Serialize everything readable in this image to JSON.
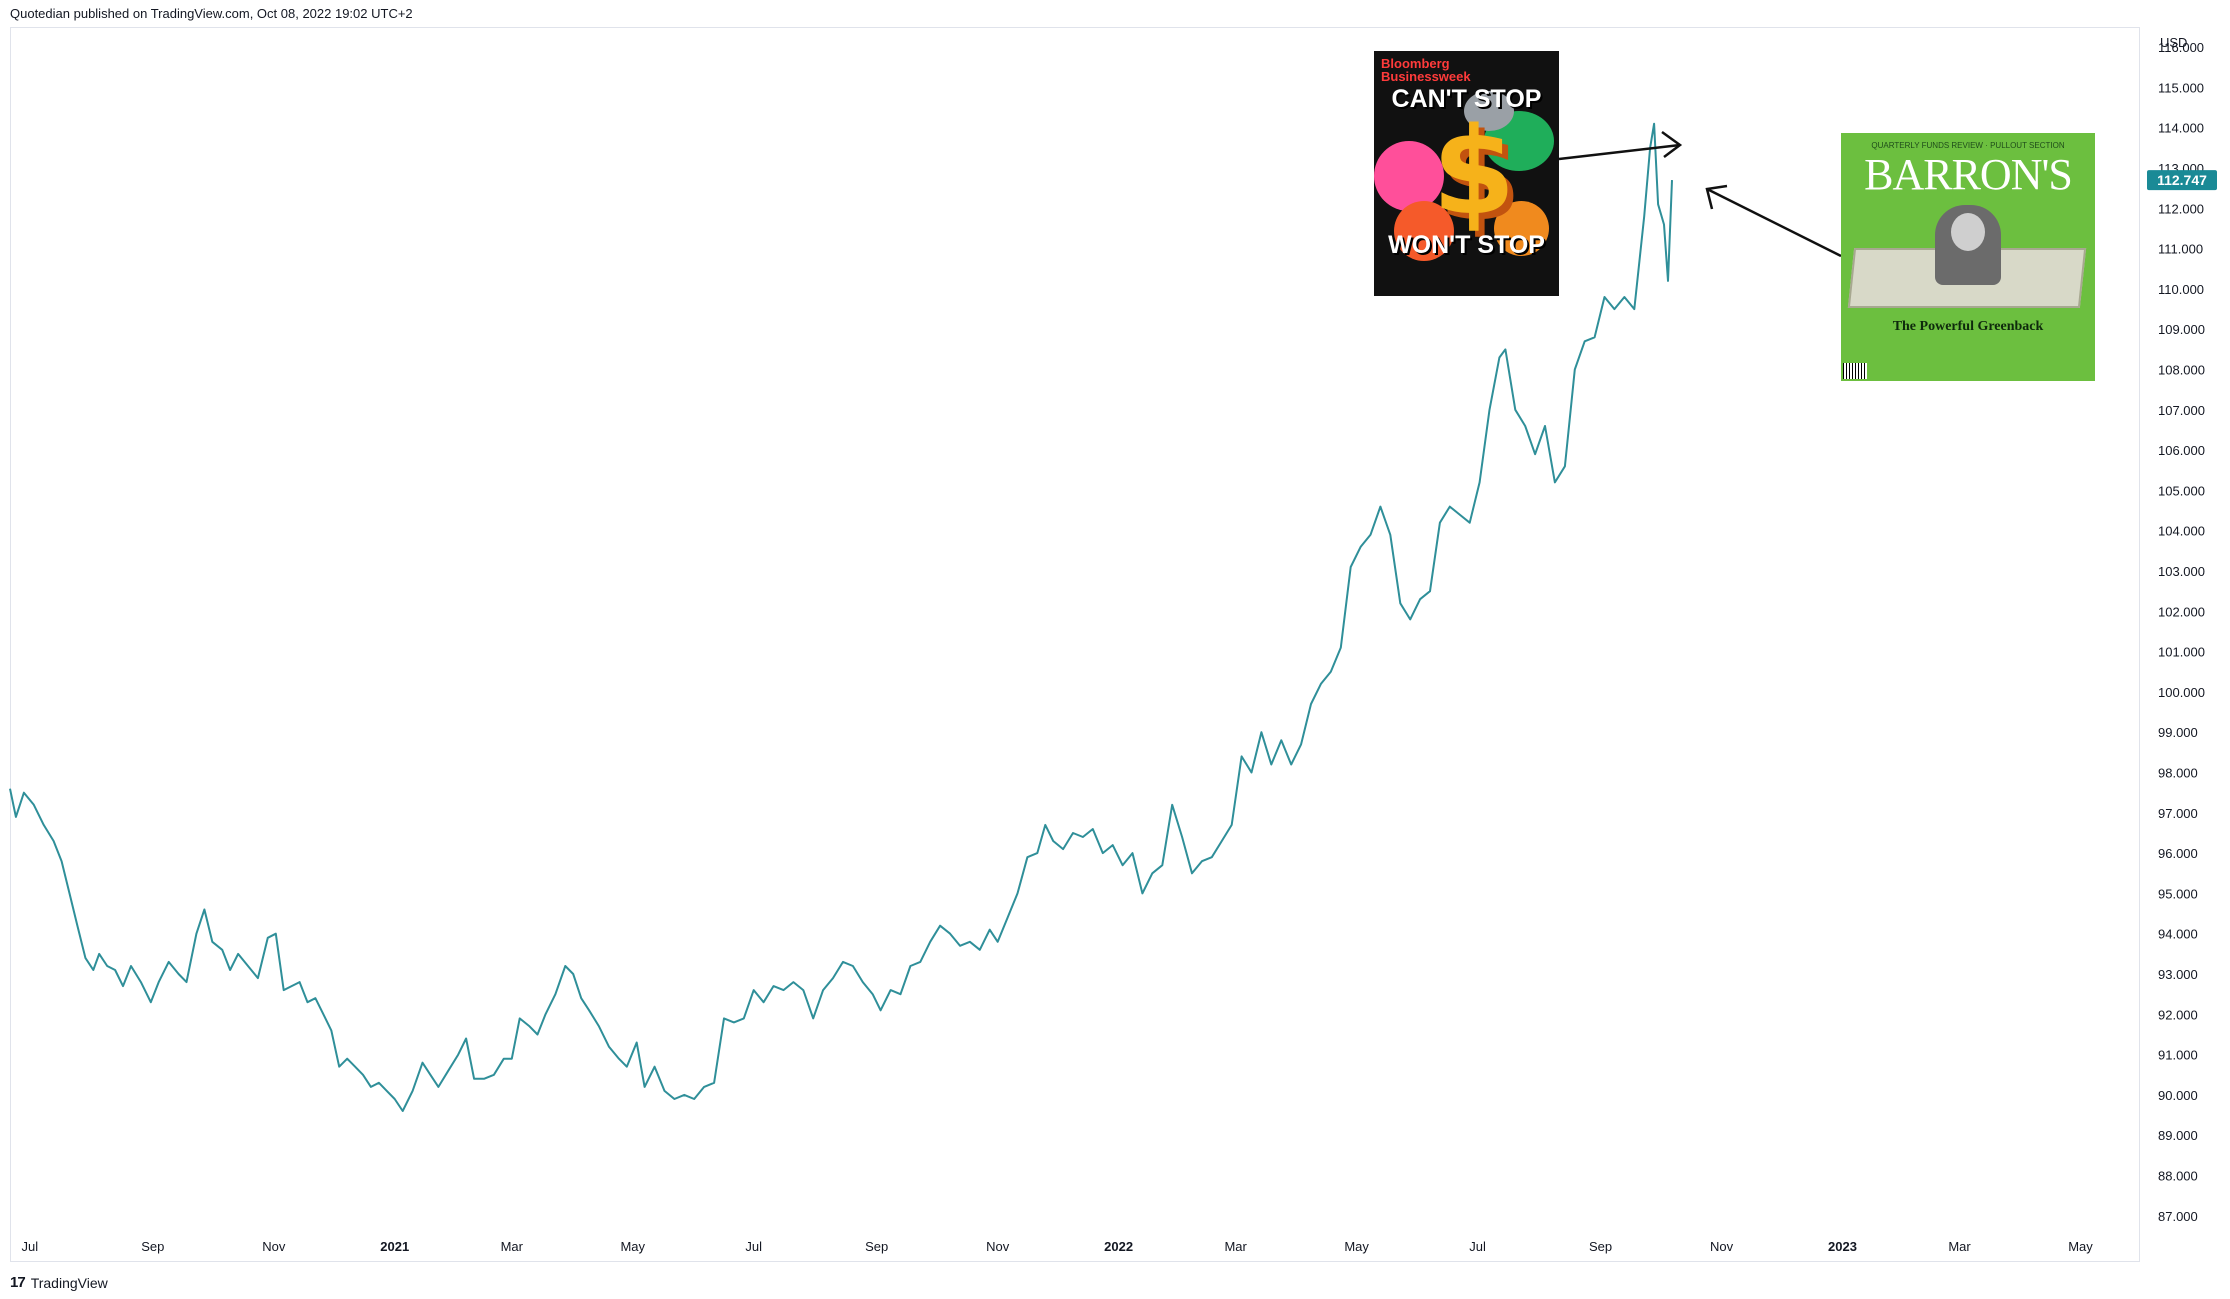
{
  "header": {
    "published": "Quotedian published on TradingView.com, Oct 08, 2022 19:02 UTC+2"
  },
  "footer": {
    "logo_mark": "17",
    "brand": "TradingView"
  },
  "colors": {
    "line": "#2f8f99",
    "last_price_bg": "#1a8a96",
    "axis_text": "#131722",
    "frame": "#e0e3eb"
  },
  "annotations": {
    "bloomberg": {
      "brand": "Bloomberg Businessweek",
      "headline_top": "CAN'T STOP",
      "headline_bottom": "WON'T STOP",
      "dollar": "$"
    },
    "barrons": {
      "kicker": "QUARTERLY FUNDS REVIEW · PULLOUT SECTION",
      "masthead": "BARRON'S",
      "title": "The Powerful Greenback"
    }
  },
  "chart_data": {
    "type": "line",
    "y_unit": "USD",
    "last_price": "112.747",
    "ylim": [
      86.4,
      116.5
    ],
    "y_ticks": [
      87,
      88,
      89,
      90,
      91,
      92,
      93,
      94,
      95,
      96,
      97,
      98,
      99,
      100,
      101,
      102,
      103,
      104,
      105,
      106,
      107,
      108,
      109,
      110,
      111,
      112,
      113,
      114,
      115,
      116
    ],
    "y_tick_labels": [
      "87.000",
      "88.000",
      "89.000",
      "90.000",
      "91.000",
      "92.000",
      "93.000",
      "94.000",
      "95.000",
      "96.000",
      "97.000",
      "98.000",
      "99.000",
      "100.000",
      "101.000",
      "102.000",
      "103.000",
      "104.000",
      "105.000",
      "106.000",
      "107.000",
      "108.000",
      "109.000",
      "110.000",
      "111.000",
      "112.000",
      "113.000",
      "114.000",
      "115.000",
      "116.000"
    ],
    "x_ticks": [
      {
        "date": "2020-07-01",
        "label": "Jul",
        "bold": false
      },
      {
        "date": "2020-09-01",
        "label": "Sep",
        "bold": false
      },
      {
        "date": "2020-11-01",
        "label": "Nov",
        "bold": false
      },
      {
        "date": "2021-01-01",
        "label": "2021",
        "bold": true
      },
      {
        "date": "2021-03-01",
        "label": "Mar",
        "bold": false
      },
      {
        "date": "2021-05-01",
        "label": "May",
        "bold": false
      },
      {
        "date": "2021-07-01",
        "label": "Jul",
        "bold": false
      },
      {
        "date": "2021-09-01",
        "label": "Sep",
        "bold": false
      },
      {
        "date": "2021-11-01",
        "label": "Nov",
        "bold": false
      },
      {
        "date": "2022-01-01",
        "label": "2022",
        "bold": true
      },
      {
        "date": "2022-03-01",
        "label": "Mar",
        "bold": false
      },
      {
        "date": "2022-05-01",
        "label": "May",
        "bold": false
      },
      {
        "date": "2022-07-01",
        "label": "Jul",
        "bold": false
      },
      {
        "date": "2022-09-01",
        "label": "Sep",
        "bold": false
      },
      {
        "date": "2022-11-01",
        "label": "Nov",
        "bold": false
      },
      {
        "date": "2023-01-01",
        "label": "2023",
        "bold": true
      },
      {
        "date": "2023-03-01",
        "label": "Mar",
        "bold": false
      },
      {
        "date": "2023-05-01",
        "label": "May",
        "bold": false
      }
    ],
    "xlim": [
      "2020-06-21",
      "2023-05-31"
    ],
    "series": [
      {
        "points": [
          [
            "2020-06-21",
            97.6
          ],
          [
            "2020-06-24",
            96.9
          ],
          [
            "2020-06-28",
            97.5
          ],
          [
            "2020-07-03",
            97.2
          ],
          [
            "2020-07-08",
            96.7
          ],
          [
            "2020-07-13",
            96.3
          ],
          [
            "2020-07-17",
            95.8
          ],
          [
            "2020-07-21",
            95.0
          ],
          [
            "2020-07-25",
            94.2
          ],
          [
            "2020-07-29",
            93.4
          ],
          [
            "2020-08-02",
            93.1
          ],
          [
            "2020-08-05",
            93.5
          ],
          [
            "2020-08-09",
            93.2
          ],
          [
            "2020-08-13",
            93.1
          ],
          [
            "2020-08-17",
            92.7
          ],
          [
            "2020-08-21",
            93.2
          ],
          [
            "2020-08-26",
            92.8
          ],
          [
            "2020-08-31",
            92.3
          ],
          [
            "2020-09-04",
            92.8
          ],
          [
            "2020-09-09",
            93.3
          ],
          [
            "2020-09-14",
            93.0
          ],
          [
            "2020-09-18",
            92.8
          ],
          [
            "2020-09-23",
            94.0
          ],
          [
            "2020-09-27",
            94.6
          ],
          [
            "2020-10-01",
            93.8
          ],
          [
            "2020-10-06",
            93.6
          ],
          [
            "2020-10-10",
            93.1
          ],
          [
            "2020-10-14",
            93.5
          ],
          [
            "2020-10-19",
            93.2
          ],
          [
            "2020-10-24",
            92.9
          ],
          [
            "2020-10-29",
            93.9
          ],
          [
            "2020-11-02",
            94.0
          ],
          [
            "2020-11-06",
            92.6
          ],
          [
            "2020-11-10",
            92.7
          ],
          [
            "2020-11-14",
            92.8
          ],
          [
            "2020-11-18",
            92.3
          ],
          [
            "2020-11-22",
            92.4
          ],
          [
            "2020-11-26",
            92.0
          ],
          [
            "2020-11-30",
            91.6
          ],
          [
            "2020-12-04",
            90.7
          ],
          [
            "2020-12-08",
            90.9
          ],
          [
            "2020-12-12",
            90.7
          ],
          [
            "2020-12-16",
            90.5
          ],
          [
            "2020-12-20",
            90.2
          ],
          [
            "2020-12-24",
            90.3
          ],
          [
            "2020-12-28",
            90.1
          ],
          [
            "2021-01-01",
            89.9
          ],
          [
            "2021-01-05",
            89.6
          ],
          [
            "2021-01-10",
            90.1
          ],
          [
            "2021-01-15",
            90.8
          ],
          [
            "2021-01-19",
            90.5
          ],
          [
            "2021-01-23",
            90.2
          ],
          [
            "2021-01-28",
            90.6
          ],
          [
            "2021-02-02",
            91.0
          ],
          [
            "2021-02-06",
            91.4
          ],
          [
            "2021-02-10",
            90.4
          ],
          [
            "2021-02-15",
            90.4
          ],
          [
            "2021-02-20",
            90.5
          ],
          [
            "2021-02-25",
            90.9
          ],
          [
            "2021-03-01",
            90.9
          ],
          [
            "2021-03-05",
            91.9
          ],
          [
            "2021-03-10",
            91.7
          ],
          [
            "2021-03-14",
            91.5
          ],
          [
            "2021-03-18",
            92.0
          ],
          [
            "2021-03-23",
            92.5
          ],
          [
            "2021-03-28",
            93.2
          ],
          [
            "2021-04-01",
            93.0
          ],
          [
            "2021-04-05",
            92.4
          ],
          [
            "2021-04-09",
            92.1
          ],
          [
            "2021-04-14",
            91.7
          ],
          [
            "2021-04-19",
            91.2
          ],
          [
            "2021-04-24",
            90.9
          ],
          [
            "2021-04-28",
            90.7
          ],
          [
            "2021-05-03",
            91.3
          ],
          [
            "2021-05-07",
            90.2
          ],
          [
            "2021-05-12",
            90.7
          ],
          [
            "2021-05-17",
            90.1
          ],
          [
            "2021-05-22",
            89.9
          ],
          [
            "2021-05-27",
            90.0
          ],
          [
            "2021-06-01",
            89.9
          ],
          [
            "2021-06-06",
            90.2
          ],
          [
            "2021-06-11",
            90.3
          ],
          [
            "2021-06-16",
            91.9
          ],
          [
            "2021-06-21",
            91.8
          ],
          [
            "2021-06-26",
            91.9
          ],
          [
            "2021-07-01",
            92.6
          ],
          [
            "2021-07-06",
            92.3
          ],
          [
            "2021-07-11",
            92.7
          ],
          [
            "2021-07-16",
            92.6
          ],
          [
            "2021-07-21",
            92.8
          ],
          [
            "2021-07-26",
            92.6
          ],
          [
            "2021-07-31",
            91.9
          ],
          [
            "2021-08-05",
            92.6
          ],
          [
            "2021-08-10",
            92.9
          ],
          [
            "2021-08-15",
            93.3
          ],
          [
            "2021-08-20",
            93.2
          ],
          [
            "2021-08-25",
            92.8
          ],
          [
            "2021-08-30",
            92.5
          ],
          [
            "2021-09-03",
            92.1
          ],
          [
            "2021-09-08",
            92.6
          ],
          [
            "2021-09-13",
            92.5
          ],
          [
            "2021-09-18",
            93.2
          ],
          [
            "2021-09-23",
            93.3
          ],
          [
            "2021-09-28",
            93.8
          ],
          [
            "2021-10-03",
            94.2
          ],
          [
            "2021-10-08",
            94.0
          ],
          [
            "2021-10-13",
            93.7
          ],
          [
            "2021-10-18",
            93.8
          ],
          [
            "2021-10-23",
            93.6
          ],
          [
            "2021-10-28",
            94.1
          ],
          [
            "2021-11-01",
            93.8
          ],
          [
            "2021-11-06",
            94.4
          ],
          [
            "2021-11-11",
            95.0
          ],
          [
            "2021-11-16",
            95.9
          ],
          [
            "2021-11-21",
            96.0
          ],
          [
            "2021-11-25",
            96.7
          ],
          [
            "2021-11-29",
            96.3
          ],
          [
            "2021-12-04",
            96.1
          ],
          [
            "2021-12-09",
            96.5
          ],
          [
            "2021-12-14",
            96.4
          ],
          [
            "2021-12-19",
            96.6
          ],
          [
            "2021-12-24",
            96.0
          ],
          [
            "2021-12-29",
            96.2
          ],
          [
            "2022-01-03",
            95.7
          ],
          [
            "2022-01-08",
            96.0
          ],
          [
            "2022-01-13",
            95.0
          ],
          [
            "2022-01-18",
            95.5
          ],
          [
            "2022-01-23",
            95.7
          ],
          [
            "2022-01-28",
            97.2
          ],
          [
            "2022-02-02",
            96.4
          ],
          [
            "2022-02-07",
            95.5
          ],
          [
            "2022-02-12",
            95.8
          ],
          [
            "2022-02-17",
            95.9
          ],
          [
            "2022-02-22",
            96.3
          ],
          [
            "2022-02-27",
            96.7
          ],
          [
            "2022-03-04",
            98.4
          ],
          [
            "2022-03-09",
            98.0
          ],
          [
            "2022-03-14",
            99.0
          ],
          [
            "2022-03-19",
            98.2
          ],
          [
            "2022-03-24",
            98.8
          ],
          [
            "2022-03-29",
            98.2
          ],
          [
            "2022-04-03",
            98.7
          ],
          [
            "2022-04-08",
            99.7
          ],
          [
            "2022-04-13",
            100.2
          ],
          [
            "2022-04-18",
            100.5
          ],
          [
            "2022-04-23",
            101.1
          ],
          [
            "2022-04-28",
            103.1
          ],
          [
            "2022-05-03",
            103.6
          ],
          [
            "2022-05-08",
            103.9
          ],
          [
            "2022-05-13",
            104.6
          ],
          [
            "2022-05-18",
            103.9
          ],
          [
            "2022-05-23",
            102.2
          ],
          [
            "2022-05-28",
            101.8
          ],
          [
            "2022-06-02",
            102.3
          ],
          [
            "2022-06-07",
            102.5
          ],
          [
            "2022-06-12",
            104.2
          ],
          [
            "2022-06-17",
            104.6
          ],
          [
            "2022-06-22",
            104.4
          ],
          [
            "2022-06-27",
            104.2
          ],
          [
            "2022-07-02",
            105.2
          ],
          [
            "2022-07-07",
            107.0
          ],
          [
            "2022-07-12",
            108.3
          ],
          [
            "2022-07-15",
            108.5
          ],
          [
            "2022-07-20",
            107.0
          ],
          [
            "2022-07-25",
            106.6
          ],
          [
            "2022-07-30",
            105.9
          ],
          [
            "2022-08-04",
            106.6
          ],
          [
            "2022-08-09",
            105.2
          ],
          [
            "2022-08-14",
            105.6
          ],
          [
            "2022-08-19",
            108.0
          ],
          [
            "2022-08-24",
            108.7
          ],
          [
            "2022-08-29",
            108.8
          ],
          [
            "2022-09-03",
            109.8
          ],
          [
            "2022-09-08",
            109.5
          ],
          [
            "2022-09-13",
            109.8
          ],
          [
            "2022-09-18",
            109.5
          ],
          [
            "2022-09-23",
            111.8
          ],
          [
            "2022-09-26",
            113.5
          ],
          [
            "2022-09-28",
            114.1
          ],
          [
            "2022-09-30",
            112.1
          ],
          [
            "2022-10-03",
            111.6
          ],
          [
            "2022-10-05",
            110.2
          ],
          [
            "2022-10-07",
            112.7
          ]
        ]
      }
    ]
  }
}
